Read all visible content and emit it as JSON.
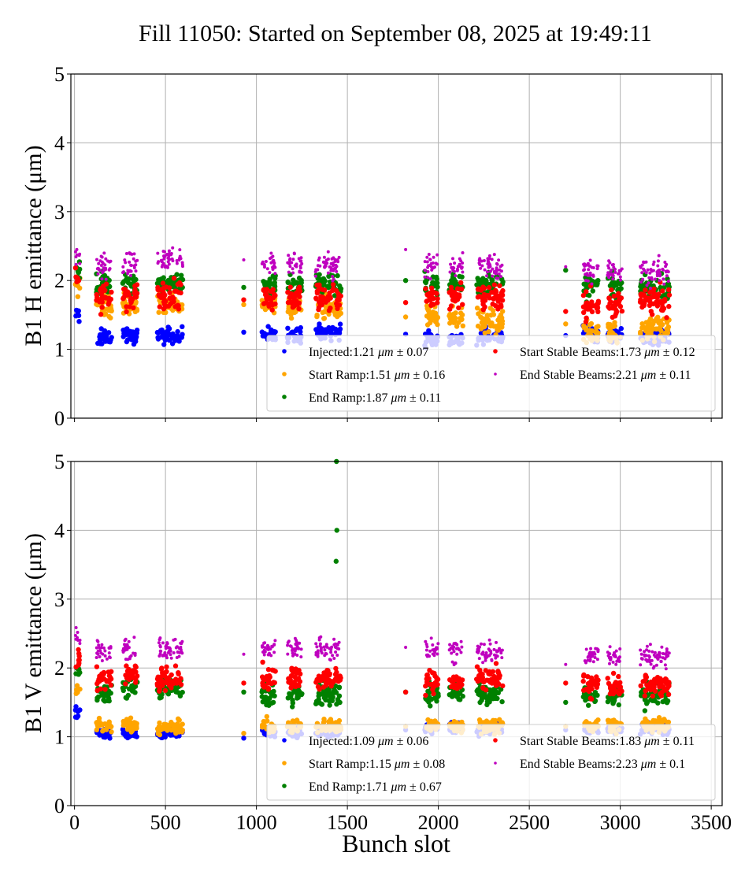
{
  "chart_data": [
    {
      "type": "scatter",
      "panel": "top",
      "title": "Fill 11050: Started on September 08, 2025 at 19:49:11",
      "xlabel": "",
      "ylabel": "B1 H emittance (μm)",
      "xlim": [
        -20,
        3560
      ],
      "ylim": [
        0,
        5
      ],
      "xticks": [
        0,
        500,
        1000,
        1500,
        2000,
        2500,
        3000,
        3500
      ],
      "xtick_labels_visible": false,
      "yticks": [
        0,
        1,
        2,
        3,
        4,
        5
      ],
      "ytick_labels": [
        "0",
        "1",
        "2",
        "3",
        "4",
        "5"
      ],
      "grid": true,
      "legend_position": "lower-right",
      "series": [
        {
          "name": "Injected",
          "label_prefix": "Injected:",
          "mean": "1.21",
          "std": "0.07",
          "color": "#0000ff",
          "cluster_levels": [
            1.5,
            1.17,
            1.2,
            1.2,
            1.25,
            1.2,
            1.22,
            1.25,
            1.22,
            1.15,
            1.15,
            1.18,
            1.2,
            1.25,
            1.2,
            1.18,
            1.2
          ],
          "cluster_spread": 0.07
        },
        {
          "name": "Start Ramp",
          "label_prefix": "Start Ramp:",
          "mean": "1.51",
          "std": "0.16",
          "color": "#ffa500",
          "cluster_levels": [
            1.9,
            1.62,
            1.65,
            1.65,
            1.65,
            1.65,
            1.62,
            1.6,
            1.47,
            1.5,
            1.45,
            1.4,
            1.37,
            1.25,
            1.25,
            1.3,
            1.3
          ],
          "cluster_spread": 0.1
        },
        {
          "name": "End Ramp",
          "label_prefix": "End Ramp:",
          "mean": "1.87",
          "std": "0.11",
          "color": "#008000",
          "cluster_levels": [
            2.15,
            1.95,
            1.97,
            1.95,
            1.9,
            1.95,
            1.93,
            1.95,
            2.0,
            1.95,
            1.95,
            1.95,
            2.15,
            1.9,
            1.9,
            1.88,
            1.88
          ],
          "cluster_spread": 0.1
        },
        {
          "name": "Start Stable Beams",
          "label_prefix": "Start Stable Beams:",
          "mean": "1.73",
          "std": "0.12",
          "color": "#ff0000",
          "cluster_levels": [
            2.05,
            1.75,
            1.78,
            1.8,
            1.72,
            1.8,
            1.75,
            1.75,
            1.68,
            1.75,
            1.73,
            1.75,
            1.55,
            1.65,
            1.65,
            1.7,
            1.68
          ],
          "cluster_spread": 0.12
        },
        {
          "name": "End Stable Beams",
          "label_prefix": "End Stable Beams:",
          "mean": "2.21",
          "std": "0.11",
          "color": "#bf00bf",
          "cluster_levels": [
            2.4,
            2.22,
            2.25,
            2.3,
            2.3,
            2.25,
            2.25,
            2.22,
            2.45,
            2.22,
            2.2,
            2.2,
            2.2,
            2.15,
            2.15,
            2.12,
            2.12
          ],
          "cluster_spread": 0.11
        }
      ]
    },
    {
      "type": "scatter",
      "panel": "bottom",
      "title": "",
      "xlabel": "Bunch slot",
      "ylabel": "B1 V emittance (μm)",
      "xlim": [
        -20,
        3560
      ],
      "ylim": [
        0,
        5
      ],
      "xticks": [
        0,
        500,
        1000,
        1500,
        2000,
        2500,
        3000,
        3500
      ],
      "xtick_labels": [
        "0",
        "500",
        "1000",
        "1500",
        "2000",
        "2500",
        "3000",
        "3500"
      ],
      "yticks": [
        0,
        1,
        2,
        3,
        4,
        5
      ],
      "ytick_labels": [
        "0",
        "1",
        "2",
        "3",
        "4",
        "5"
      ],
      "grid": true,
      "legend_position": "lower-right",
      "outliers": [
        {
          "series": "End Ramp",
          "x": 1440,
          "y": 5.0
        },
        {
          "series": "End Ramp",
          "x": 1442,
          "y": 4.0
        },
        {
          "series": "End Ramp",
          "x": 1438,
          "y": 3.55
        }
      ],
      "series": [
        {
          "name": "Injected",
          "label_prefix": "Injected:",
          "mean": "1.09",
          "std": "0.06",
          "color": "#0000ff",
          "cluster_levels": [
            1.35,
            1.05,
            1.07,
            1.05,
            0.98,
            1.07,
            1.07,
            1.08,
            1.1,
            1.12,
            1.12,
            1.1,
            1.1,
            1.1,
            1.12,
            1.12,
            1.12
          ],
          "cluster_spread": 0.05
        },
        {
          "name": "Start Ramp",
          "label_prefix": "Start Ramp:",
          "mean": "1.15",
          "std": "0.08",
          "color": "#ffa500",
          "cluster_levels": [
            1.7,
            1.15,
            1.17,
            1.13,
            1.05,
            1.15,
            1.15,
            1.15,
            1.15,
            1.17,
            1.17,
            1.15,
            1.15,
            1.17,
            1.17,
            1.17,
            1.17
          ],
          "cluster_spread": 0.06
        },
        {
          "name": "End Ramp",
          "label_prefix": "End Ramp:",
          "mean": "1.71",
          "std": "0.67",
          "color": "#008000",
          "cluster_levels": [
            2.0,
            1.65,
            1.7,
            1.7,
            1.65,
            1.6,
            1.62,
            1.62,
            1.65,
            1.62,
            1.65,
            1.62,
            1.5,
            1.62,
            1.62,
            1.6,
            1.6
          ],
          "cluster_spread": 0.1
        },
        {
          "name": "Start Stable Beams",
          "label_prefix": "Start Stable Beams:",
          "mean": "1.83",
          "std": "0.11",
          "color": "#ff0000",
          "cluster_levels": [
            2.1,
            1.85,
            1.9,
            1.85,
            1.78,
            1.85,
            1.85,
            1.85,
            1.65,
            1.8,
            1.78,
            1.82,
            1.78,
            1.75,
            1.75,
            1.75,
            1.72
          ],
          "cluster_spread": 0.1
        },
        {
          "name": "End Stable Beams",
          "label_prefix": "End Stable Beams:",
          "mean": "2.23",
          "std": "0.1",
          "color": "#bf00bf",
          "cluster_levels": [
            2.4,
            2.25,
            2.28,
            2.28,
            2.2,
            2.28,
            2.28,
            2.28,
            2.3,
            2.25,
            2.25,
            2.22,
            2.05,
            2.18,
            2.18,
            2.18,
            2.18
          ],
          "cluster_spread": 0.1
        }
      ]
    }
  ],
  "train_slot_ranges": [
    [
      5,
      30
    ],
    [
      120,
      205
    ],
    [
      265,
      345
    ],
    [
      455,
      595
    ],
    [
      930,
      935
    ],
    [
      1030,
      1105
    ],
    [
      1170,
      1250
    ],
    [
      1325,
      1465
    ],
    [
      1820,
      1825
    ],
    [
      1925,
      2000
    ],
    [
      2060,
      2135
    ],
    [
      2210,
      2355
    ],
    [
      2700,
      2705
    ],
    [
      2795,
      2880
    ],
    [
      2930,
      3010
    ],
    [
      3110,
      3270
    ]
  ],
  "unit_label": "μm",
  "pm_symbol": "±"
}
